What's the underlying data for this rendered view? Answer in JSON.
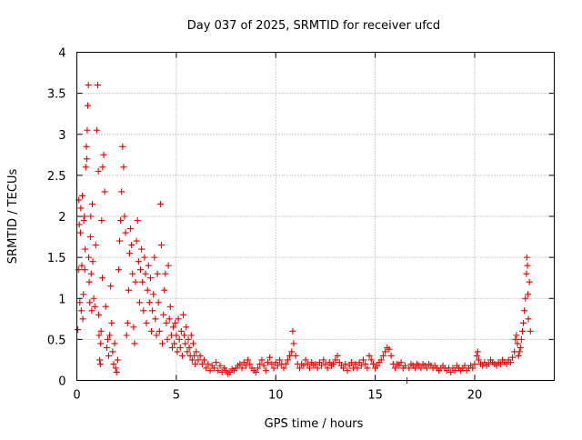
{
  "chart_data": {
    "type": "scatter",
    "title": "Day 037 of 2025, SRMTID for receiver ufcd",
    "xlabel": "GPS time / hours",
    "ylabel": "SRMTID / TECUs",
    "xlim": [
      0,
      24
    ],
    "ylim": [
      0,
      4
    ],
    "xticks": [
      0,
      5,
      10,
      15,
      20
    ],
    "xtick_labels": [
      "0",
      "5",
      "10",
      "15",
      "20"
    ],
    "yticks": [
      0,
      0.5,
      1,
      1.5,
      2,
      2.5,
      3,
      3.5,
      4
    ],
    "ytick_labels": [
      "0",
      "0.5",
      "1",
      "1.5",
      "2",
      "2.5",
      "3",
      "3.5",
      "4"
    ],
    "grid": true,
    "marker": "plus",
    "color": "#e00000",
    "series": [
      {
        "name": "ufcd",
        "points": [
          [
            0.05,
            0.62
          ],
          [
            0.08,
            1.35
          ],
          [
            0.1,
            2.2
          ],
          [
            0.12,
            1.9
          ],
          [
            0.15,
            0.95
          ],
          [
            0.18,
            1.8
          ],
          [
            0.2,
            2.1
          ],
          [
            0.22,
            0.85
          ],
          [
            0.25,
            1.4
          ],
          [
            0.28,
            2.25
          ],
          [
            0.3,
            0.75
          ],
          [
            0.33,
            1.05
          ],
          [
            0.35,
            1.95
          ],
          [
            0.38,
            2.0
          ],
          [
            0.4,
            1.35
          ],
          [
            0.42,
            1.6
          ],
          [
            0.45,
            2.6
          ],
          [
            0.48,
            2.85
          ],
          [
            0.5,
            2.7
          ],
          [
            0.52,
            3.05
          ],
          [
            0.55,
            3.35
          ],
          [
            0.58,
            3.6
          ],
          [
            0.6,
            1.5
          ],
          [
            0.62,
            1.2
          ],
          [
            0.65,
            0.95
          ],
          [
            0.68,
            1.75
          ],
          [
            0.7,
            2.0
          ],
          [
            0.72,
            1.3
          ],
          [
            0.75,
            0.85
          ],
          [
            0.78,
            2.15
          ],
          [
            0.8,
            1.45
          ],
          [
            0.85,
            1.0
          ],
          [
            0.9,
            0.9
          ],
          [
            0.95,
            1.65
          ],
          [
            1.0,
            3.05
          ],
          [
            1.05,
            3.6
          ],
          [
            1.08,
            2.55
          ],
          [
            1.1,
            0.8
          ],
          [
            1.12,
            0.55
          ],
          [
            1.15,
            0.25
          ],
          [
            1.18,
            0.2
          ],
          [
            1.2,
            0.45
          ],
          [
            1.22,
            0.6
          ],
          [
            1.25,
            1.95
          ],
          [
            1.28,
            1.25
          ],
          [
            1.3,
            2.6
          ],
          [
            1.35,
            2.75
          ],
          [
            1.4,
            2.3
          ],
          [
            1.45,
            0.9
          ],
          [
            1.5,
            0.4
          ],
          [
            1.55,
            0.5
          ],
          [
            1.6,
            0.3
          ],
          [
            1.65,
            0.55
          ],
          [
            1.7,
            1.15
          ],
          [
            1.75,
            0.7
          ],
          [
            1.8,
            0.35
          ],
          [
            1.85,
            0.2
          ],
          [
            1.9,
            0.45
          ],
          [
            1.95,
            0.15
          ],
          [
            2.0,
            0.1
          ],
          [
            2.05,
            0.25
          ],
          [
            2.1,
            1.35
          ],
          [
            2.15,
            1.7
          ],
          [
            2.2,
            1.95
          ],
          [
            2.25,
            2.3
          ],
          [
            2.3,
            2.85
          ],
          [
            2.35,
            2.6
          ],
          [
            2.4,
            2.0
          ],
          [
            2.45,
            1.8
          ],
          [
            2.5,
            0.55
          ],
          [
            2.55,
            0.7
          ],
          [
            2.6,
            1.1
          ],
          [
            2.65,
            1.55
          ],
          [
            2.7,
            1.85
          ],
          [
            2.75,
            1.65
          ],
          [
            2.8,
            1.3
          ],
          [
            2.85,
            0.65
          ],
          [
            2.9,
            0.45
          ],
          [
            2.95,
            1.2
          ],
          [
            3.0,
            1.7
          ],
          [
            3.05,
            1.95
          ],
          [
            3.1,
            1.45
          ],
          [
            3.15,
            0.95
          ],
          [
            3.2,
            1.35
          ],
          [
            3.25,
            1.6
          ],
          [
            3.3,
            1.2
          ],
          [
            3.35,
            0.85
          ],
          [
            3.4,
            1.5
          ],
          [
            3.45,
            1.3
          ],
          [
            3.5,
            0.7
          ],
          [
            3.55,
            1.1
          ],
          [
            3.6,
            1.4
          ],
          [
            3.65,
            0.95
          ],
          [
            3.7,
            1.25
          ],
          [
            3.75,
            0.6
          ],
          [
            3.8,
            0.85
          ],
          [
            3.85,
            1.05
          ],
          [
            3.9,
            1.5
          ],
          [
            3.95,
            0.75
          ],
          [
            4.0,
            0.55
          ],
          [
            4.05,
            1.3
          ],
          [
            4.1,
            0.95
          ],
          [
            4.15,
            0.6
          ],
          [
            4.2,
            2.15
          ],
          [
            4.25,
            1.65
          ],
          [
            4.3,
            0.45
          ],
          [
            4.35,
            0.8
          ],
          [
            4.4,
            1.1
          ],
          [
            4.45,
            1.3
          ],
          [
            4.5,
            0.7
          ],
          [
            4.55,
            0.5
          ],
          [
            4.6,
            1.4
          ],
          [
            4.65,
            0.75
          ],
          [
            4.7,
            0.9
          ],
          [
            4.75,
            0.55
          ],
          [
            4.8,
            0.4
          ],
          [
            4.85,
            0.65
          ],
          [
            4.9,
            0.45
          ],
          [
            4.95,
            0.7
          ],
          [
            5.0,
            0.55
          ],
          [
            5.05,
            0.35
          ],
          [
            5.1,
            0.75
          ],
          [
            5.15,
            0.5
          ],
          [
            5.2,
            0.4
          ],
          [
            5.25,
            0.6
          ],
          [
            5.3,
            0.3
          ],
          [
            5.35,
            0.8
          ],
          [
            5.4,
            0.55
          ],
          [
            5.45,
            0.45
          ],
          [
            5.5,
            0.65
          ],
          [
            5.55,
            0.35
          ],
          [
            5.6,
            0.5
          ],
          [
            5.65,
            0.4
          ],
          [
            5.7,
            0.3
          ],
          [
            5.75,
            0.55
          ],
          [
            5.8,
            0.25
          ],
          [
            5.85,
            0.45
          ],
          [
            5.9,
            0.3
          ],
          [
            5.95,
            0.2
          ],
          [
            6.0,
            0.35
          ],
          [
            6.1,
            0.25
          ],
          [
            6.2,
            0.3
          ],
          [
            6.3,
            0.2
          ],
          [
            6.4,
            0.25
          ],
          [
            6.5,
            0.15
          ],
          [
            6.6,
            0.2
          ],
          [
            6.7,
            0.12
          ],
          [
            6.8,
            0.18
          ],
          [
            6.9,
            0.15
          ],
          [
            7.0,
            0.22
          ],
          [
            7.1,
            0.12
          ],
          [
            7.2,
            0.18
          ],
          [
            7.3,
            0.1
          ],
          [
            7.4,
            0.15
          ],
          [
            7.5,
            0.12
          ],
          [
            7.6,
            0.08
          ],
          [
            7.7,
            0.1
          ],
          [
            7.8,
            0.14
          ],
          [
            7.9,
            0.12
          ],
          [
            8.0,
            0.15
          ],
          [
            8.1,
            0.18
          ],
          [
            8.2,
            0.2
          ],
          [
            8.3,
            0.15
          ],
          [
            8.4,
            0.22
          ],
          [
            8.5,
            0.18
          ],
          [
            8.6,
            0.25
          ],
          [
            8.7,
            0.2
          ],
          [
            8.8,
            0.15
          ],
          [
            8.9,
            0.12
          ],
          [
            9.0,
            0.1
          ],
          [
            9.1,
            0.15
          ],
          [
            9.2,
            0.2
          ],
          [
            9.3,
            0.25
          ],
          [
            9.4,
            0.18
          ],
          [
            9.5,
            0.12
          ],
          [
            9.6,
            0.22
          ],
          [
            9.7,
            0.28
          ],
          [
            9.8,
            0.2
          ],
          [
            9.9,
            0.15
          ],
          [
            10.0,
            0.22
          ],
          [
            10.1,
            0.18
          ],
          [
            10.2,
            0.25
          ],
          [
            10.3,
            0.2
          ],
          [
            10.4,
            0.15
          ],
          [
            10.5,
            0.2
          ],
          [
            10.6,
            0.25
          ],
          [
            10.7,
            0.3
          ],
          [
            10.8,
            0.35
          ],
          [
            10.85,
            0.6
          ],
          [
            10.9,
            0.45
          ],
          [
            11.0,
            0.3
          ],
          [
            11.1,
            0.2
          ],
          [
            11.2,
            0.15
          ],
          [
            11.3,
            0.2
          ],
          [
            11.4,
            0.18
          ],
          [
            11.5,
            0.25
          ],
          [
            11.6,
            0.2
          ],
          [
            11.7,
            0.15
          ],
          [
            11.8,
            0.22
          ],
          [
            11.9,
            0.18
          ],
          [
            12.0,
            0.2
          ],
          [
            12.1,
            0.15
          ],
          [
            12.2,
            0.22
          ],
          [
            12.3,
            0.18
          ],
          [
            12.4,
            0.25
          ],
          [
            12.5,
            0.2
          ],
          [
            12.6,
            0.15
          ],
          [
            12.7,
            0.22
          ],
          [
            12.8,
            0.18
          ],
          [
            12.9,
            0.2
          ],
          [
            13.0,
            0.25
          ],
          [
            13.1,
            0.3
          ],
          [
            13.2,
            0.22
          ],
          [
            13.3,
            0.18
          ],
          [
            13.4,
            0.15
          ],
          [
            13.5,
            0.2
          ],
          [
            13.6,
            0.12
          ],
          [
            13.7,
            0.18
          ],
          [
            13.8,
            0.22
          ],
          [
            13.9,
            0.15
          ],
          [
            14.0,
            0.2
          ],
          [
            14.1,
            0.15
          ],
          [
            14.2,
            0.22
          ],
          [
            14.3,
            0.18
          ],
          [
            14.4,
            0.25
          ],
          [
            14.5,
            0.2
          ],
          [
            14.6,
            0.15
          ],
          [
            14.7,
            0.3
          ],
          [
            14.8,
            0.25
          ],
          [
            14.9,
            0.2
          ],
          [
            15.0,
            0.15
          ],
          [
            15.1,
            0.18
          ],
          [
            15.2,
            0.22
          ],
          [
            15.3,
            0.25
          ],
          [
            15.4,
            0.3
          ],
          [
            15.5,
            0.35
          ],
          [
            15.6,
            0.4
          ],
          [
            15.7,
            0.38
          ],
          [
            15.8,
            0.3
          ],
          [
            15.9,
            0.2
          ],
          [
            16.0,
            0.15
          ],
          [
            16.1,
            0.2
          ],
          [
            16.2,
            0.18
          ],
          [
            16.3,
            0.22
          ],
          [
            16.4,
            0.15
          ],
          [
            16.5,
            0.18
          ],
          [
            16.6,
            0.0
          ],
          [
            16.7,
            0.15
          ],
          [
            16.8,
            0.2
          ],
          [
            16.9,
            0.18
          ],
          [
            17.0,
            0.15
          ],
          [
            17.1,
            0.2
          ],
          [
            17.2,
            0.18
          ],
          [
            17.3,
            0.15
          ],
          [
            17.4,
            0.2
          ],
          [
            17.5,
            0.18
          ],
          [
            17.6,
            0.15
          ],
          [
            17.7,
            0.2
          ],
          [
            17.8,
            0.18
          ],
          [
            17.9,
            0.15
          ],
          [
            18.0,
            0.18
          ],
          [
            18.1,
            0.15
          ],
          [
            18.2,
            0.12
          ],
          [
            18.3,
            0.15
          ],
          [
            18.4,
            0.18
          ],
          [
            18.5,
            0.15
          ],
          [
            18.6,
            0.12
          ],
          [
            18.7,
            0.15
          ],
          [
            18.8,
            0.1
          ],
          [
            18.9,
            0.15
          ],
          [
            19.0,
            0.12
          ],
          [
            19.1,
            0.18
          ],
          [
            19.2,
            0.15
          ],
          [
            19.3,
            0.12
          ],
          [
            19.4,
            0.15
          ],
          [
            19.5,
            0.18
          ],
          [
            19.6,
            0.12
          ],
          [
            19.7,
            0.15
          ],
          [
            19.8,
            0.18
          ],
          [
            19.9,
            0.15
          ],
          [
            20.0,
            0.2
          ],
          [
            20.1,
            0.3
          ],
          [
            20.15,
            0.35
          ],
          [
            20.2,
            0.25
          ],
          [
            20.3,
            0.2
          ],
          [
            20.4,
            0.18
          ],
          [
            20.5,
            0.22
          ],
          [
            20.6,
            0.18
          ],
          [
            20.7,
            0.2
          ],
          [
            20.8,
            0.25
          ],
          [
            20.9,
            0.22
          ],
          [
            21.0,
            0.2
          ],
          [
            21.1,
            0.18
          ],
          [
            21.2,
            0.22
          ],
          [
            21.3,
            0.2
          ],
          [
            21.4,
            0.25
          ],
          [
            21.5,
            0.22
          ],
          [
            21.6,
            0.2
          ],
          [
            21.7,
            0.25
          ],
          [
            21.8,
            0.22
          ],
          [
            21.9,
            0.28
          ],
          [
            22.0,
            0.35
          ],
          [
            22.05,
            0.5
          ],
          [
            22.1,
            0.55
          ],
          [
            22.15,
            0.45
          ],
          [
            22.2,
            0.3
          ],
          [
            22.25,
            0.35
          ],
          [
            22.3,
            0.4
          ],
          [
            22.35,
            0.5
          ],
          [
            22.4,
            0.6
          ],
          [
            22.45,
            0.7
          ],
          [
            22.5,
            0.85
          ],
          [
            22.55,
            1.0
          ],
          [
            22.6,
            1.3
          ],
          [
            22.62,
            1.5
          ],
          [
            22.65,
            1.4
          ],
          [
            22.68,
            1.05
          ],
          [
            22.7,
            0.75
          ],
          [
            22.75,
            1.2
          ],
          [
            22.8,
            0.6
          ]
        ]
      }
    ]
  }
}
